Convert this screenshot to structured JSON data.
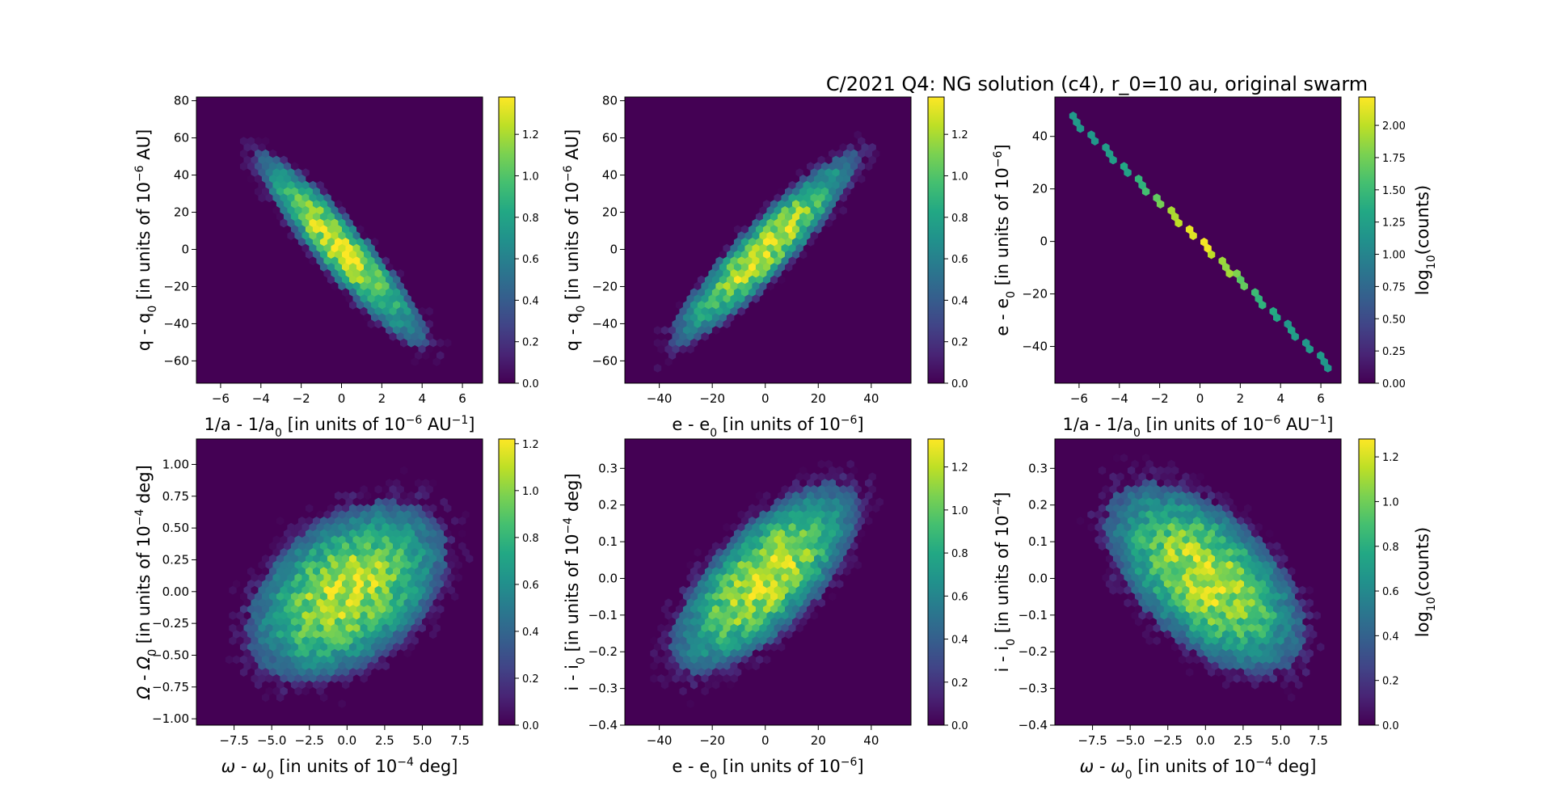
{
  "figure_title": "C/2021 Q4: NG solution (c4), r_0=10 au, original swarm",
  "chart_data": [
    {
      "type": "heatmap",
      "style": "hexbin",
      "xlabel": {
        "pre": "1/a - 1/a",
        "sub": "0",
        "mid": " [in units of 10",
        "sup": "−6",
        "post": " AU",
        "sup2": "−1",
        "end": "]"
      },
      "ylabel": {
        "pre": "q - q",
        "sub": "0",
        "mid": " [in units of 10",
        "sup": "−6",
        "post": " AU]"
      },
      "xlim": [
        -7.2,
        7.0
      ],
      "ylim": [
        -72,
        82
      ],
      "xticks": [
        "−6",
        "−4",
        "−2",
        "0",
        "2",
        "4",
        "6"
      ],
      "yticks": [
        "−60",
        "−40",
        "−20",
        "0",
        "20",
        "40",
        "60",
        "80"
      ],
      "distribution": {
        "x_sigma": 1.8,
        "y_sigma": 22,
        "correlation": -0.92,
        "max_log_count": 1.38
      },
      "colorbar": {
        "ticks": [
          "0.0",
          "0.2",
          "0.4",
          "0.6",
          "0.8",
          "1.0",
          "1.2"
        ],
        "max": 1.38,
        "label": ""
      }
    },
    {
      "type": "heatmap",
      "style": "hexbin",
      "xlabel": {
        "pre": "e - e",
        "sub": "0",
        "mid": " [in units of 10",
        "sup": "−6",
        "post": "]"
      },
      "ylabel": {
        "pre": "q - q",
        "sub": "0",
        "mid": " [in units of 10",
        "sup": "−6",
        "post": " AU]"
      },
      "xlim": [
        -53,
        55
      ],
      "ylim": [
        -72,
        82
      ],
      "xticks": [
        "−40",
        "−20",
        "0",
        "20",
        "40"
      ],
      "yticks": [
        "−60",
        "−40",
        "−20",
        "0",
        "20",
        "40",
        "60",
        "80"
      ],
      "distribution": {
        "x_sigma": 15,
        "y_sigma": 22,
        "correlation": 0.92,
        "max_log_count": 1.38
      },
      "colorbar": {
        "ticks": [
          "0.0",
          "0.2",
          "0.4",
          "0.6",
          "0.8",
          "1.0",
          "1.2"
        ],
        "max": 1.38,
        "label": ""
      }
    },
    {
      "type": "heatmap",
      "style": "hexbin-line",
      "xlabel": {
        "pre": "1/a - 1/a",
        "sub": "0",
        "mid": " [in units of 10",
        "sup": "−6",
        "post": " AU",
        "sup2": "−1",
        "end": "]"
      },
      "ylabel": {
        "pre": "e - e",
        "sub": "0",
        "mid": " [in units of 10",
        "sup": "−6",
        "post": "]"
      },
      "xlim": [
        -7.2,
        7.0
      ],
      "ylim": [
        -54,
        55
      ],
      "xticks": [
        "−6",
        "−4",
        "−2",
        "0",
        "2",
        "4",
        "6"
      ],
      "yticks": [
        "−40",
        "−20",
        "0",
        "20",
        "40"
      ],
      "line": {
        "x_range": [
          -6.2,
          6.4
        ],
        "slope": -7.42,
        "x_sigma": 1.8
      },
      "colorbar": {
        "ticks": [
          "0.00",
          "0.25",
          "0.50",
          "0.75",
          "1.00",
          "1.25",
          "1.50",
          "1.75",
          "2.00"
        ],
        "max": 2.22,
        "label": {
          "pre": "log",
          "sub": "10",
          "post": "(counts)"
        }
      }
    },
    {
      "type": "heatmap",
      "style": "hexbin",
      "xlabel": {
        "pre_sym": "ω",
        "pre": " - ",
        "sym2": "ω",
        "sub": "0",
        "mid": " [in units of 10",
        "sup": "−4",
        "post": " deg]"
      },
      "ylabel": {
        "pre_sym": "Ω",
        "pre": " - ",
        "sym2": "Ω",
        "sub": "0",
        "mid": " [in units of 10",
        "sup": "−4",
        "post": " deg]"
      },
      "xlim": [
        -10.0,
        9.0
      ],
      "ylim": [
        -1.05,
        1.2
      ],
      "xticks": [
        "−7.5",
        "−5.0",
        "−2.5",
        "0.0",
        "2.5",
        "5.0",
        "7.5"
      ],
      "yticks": [
        "−1.00",
        "−0.75",
        "−0.50",
        "−0.25",
        "0.00",
        "0.25",
        "0.50",
        "0.75",
        "1.00"
      ],
      "distribution": {
        "x_sigma": 2.8,
        "y_sigma": 0.3,
        "correlation": 0.4,
        "max_log_count": 1.2
      },
      "colorbar": {
        "ticks": [
          "0.0",
          "0.2",
          "0.4",
          "0.6",
          "0.8",
          "1.0",
          "1.2"
        ],
        "max": 1.22,
        "label": ""
      }
    },
    {
      "type": "heatmap",
      "style": "hexbin",
      "xlabel": {
        "pre": "e - e",
        "sub": "0",
        "mid": " [in units of 10",
        "sup": "−6",
        "post": "]"
      },
      "ylabel": {
        "pre": "i - i",
        "sub": "0",
        "mid": " [in units of 10",
        "sup": "−4",
        "post": " deg]"
      },
      "xlim": [
        -53,
        55
      ],
      "ylim": [
        -0.4,
        0.38
      ],
      "xticks": [
        "−40",
        "−20",
        "0",
        "20",
        "40"
      ],
      "yticks": [
        "−0.4",
        "−0.3",
        "−0.2",
        "−0.1",
        "0.0",
        "0.1",
        "0.2",
        "0.3"
      ],
      "distribution": {
        "x_sigma": 15,
        "y_sigma": 0.11,
        "correlation": 0.7,
        "max_log_count": 1.32
      },
      "colorbar": {
        "ticks": [
          "0.0",
          "0.2",
          "0.4",
          "0.6",
          "0.8",
          "1.0",
          "1.2"
        ],
        "max": 1.33,
        "label": ""
      }
    },
    {
      "type": "heatmap",
      "style": "hexbin",
      "xlabel": {
        "pre_sym": "ω",
        "pre": " - ",
        "sym2": "ω",
        "sub": "0",
        "mid": " [in units of 10",
        "sup": "−4",
        "post": " deg]"
      },
      "ylabel": {
        "pre": "i - i",
        "sub": "0",
        "mid": " [in units of 10",
        "sup": "−4",
        "post": "]"
      },
      "xlim": [
        -10.0,
        9.0
      ],
      "ylim": [
        -0.4,
        0.38
      ],
      "xticks": [
        "−7.5",
        "−5.0",
        "−2.5",
        "0.0",
        "2.5",
        "5.0",
        "7.5"
      ],
      "yticks": [
        "−0.4",
        "−0.3",
        "−0.2",
        "−0.1",
        "0.0",
        "0.1",
        "0.2",
        "0.3"
      ],
      "distribution": {
        "x_sigma": 2.8,
        "y_sigma": 0.11,
        "correlation": -0.55,
        "max_log_count": 1.27
      },
      "colorbar": {
        "ticks": [
          "0.0",
          "0.2",
          "0.4",
          "0.6",
          "0.8",
          "1.0",
          "1.2"
        ],
        "max": 1.28,
        "label": {
          "pre": "log",
          "sub": "10",
          "post": "(counts)"
        }
      }
    }
  ]
}
